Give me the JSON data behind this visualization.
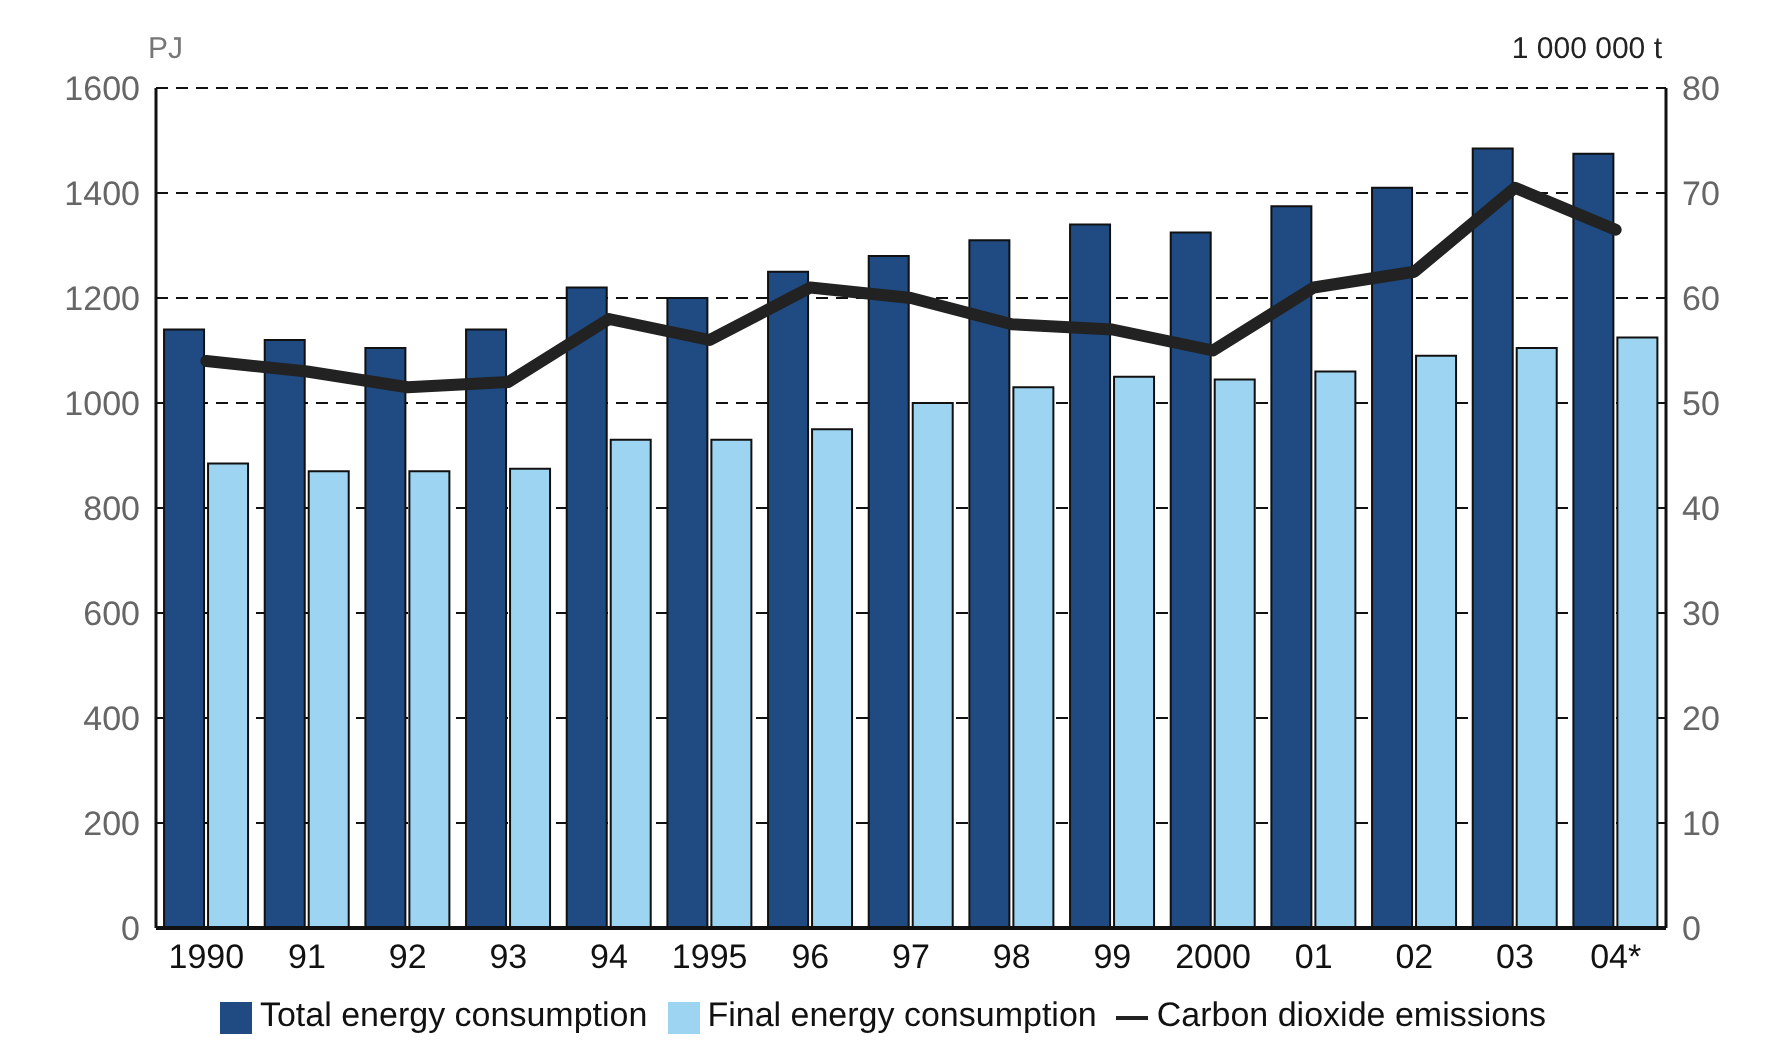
{
  "chart_data": {
    "type": "bar",
    "ylabel": "PJ",
    "y2label": "1 000 000 t",
    "categories": [
      "1990",
      "91",
      "92",
      "93",
      "94",
      "1995",
      "96",
      "97",
      "98",
      "99",
      "2000",
      "01",
      "02",
      "03",
      "04*"
    ],
    "series": [
      {
        "name": "Total energy consumption",
        "color": "#1f4a82",
        "values": [
          1140,
          1120,
          1105,
          1140,
          1220,
          1200,
          1250,
          1280,
          1310,
          1340,
          1325,
          1375,
          1410,
          1485,
          1475
        ]
      },
      {
        "name": "Final energy consumption",
        "color": "#9dd4f2",
        "values": [
          885,
          870,
          870,
          875,
          930,
          930,
          950,
          1000,
          1030,
          1050,
          1045,
          1060,
          1090,
          1105,
          1125
        ]
      },
      {
        "name": "Carbon dioxide emissions",
        "type": "line",
        "axis": "y2",
        "color": "#222222",
        "values": [
          54,
          53,
          51.5,
          52,
          58,
          56,
          61,
          60,
          57.5,
          57,
          55,
          61,
          62.5,
          70.5,
          66.5
        ]
      }
    ],
    "ylim": [
      0,
      1600
    ],
    "yticks": [
      0,
      200,
      400,
      600,
      800,
      1000,
      1200,
      1400,
      1600
    ],
    "y2lim": [
      0,
      80
    ],
    "y2ticks": [
      0,
      10,
      20,
      30,
      40,
      50,
      60,
      70,
      80
    ],
    "grid": "y",
    "legend": "bottom",
    "marker": "none",
    "line_style": "solid"
  }
}
